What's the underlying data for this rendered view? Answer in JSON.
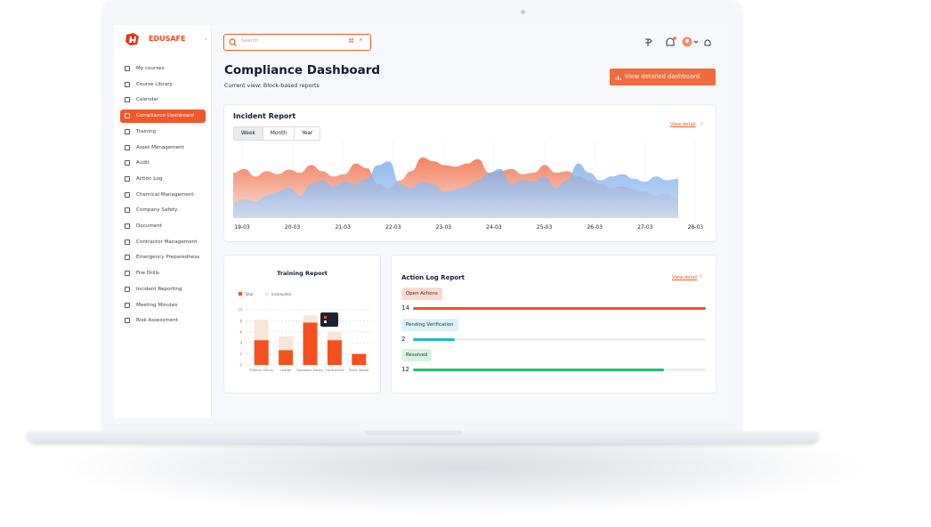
{
  "brand": "EDUSAFE",
  "sidebar": {
    "items": [
      "My courses",
      "Course Library",
      "Calendar",
      "Compliance Dashboard",
      "Training",
      "Asset Management",
      "Audit",
      "Action Log",
      "Chemical Management",
      "Company Safety",
      "Document",
      "Contractor Management",
      "Emergency Preparedness",
      "Fire Drills",
      "Incident Reporting",
      "Meeting Minutes",
      "Risk Assessment"
    ],
    "active": 3
  },
  "header": {
    "search_placeholder": "Search",
    "shortcut": "F"
  },
  "page": {
    "title": "Compliance Dashboard",
    "subtitle": "Current view: Block-based reports",
    "button": "View detailed dashboard"
  },
  "incident_report": {
    "title": "Incident Report",
    "tabs": [
      "Week",
      "Month",
      "Year"
    ],
    "active_tab": 0,
    "link": "View detail",
    "x_labels": [
      "19-03",
      "20-03",
      "21-03",
      "22-03",
      "23-03",
      "24-03",
      "25-03",
      "26-03",
      "27-03",
      "28-03"
    ],
    "ylim": [
      0,
      100
    ],
    "series": [
      {
        "color": "#f26b45",
        "values": [
          60,
          65,
          55,
          62,
          58,
          64,
          60,
          70,
          62,
          55,
          58,
          72,
          66,
          45,
          40,
          50,
          62,
          80,
          75,
          70,
          68,
          72,
          78,
          60,
          62,
          65,
          58,
          60,
          70,
          60,
          62,
          55,
          50,
          45,
          40,
          42,
          38,
          35,
          30,
          32,
          25
        ]
      },
      {
        "color": "#6fa8e8",
        "values": [
          20,
          25,
          22,
          30,
          35,
          40,
          30,
          45,
          50,
          42,
          48,
          45,
          52,
          70,
          75,
          45,
          40,
          48,
          45,
          35,
          38,
          42,
          50,
          60,
          65,
          45,
          50,
          48,
          55,
          40,
          50,
          72,
          60,
          50,
          55,
          58,
          52,
          48,
          55,
          50,
          52
        ]
      }
    ]
  },
  "training_report": {
    "title": "Training Report",
    "ylim": [
      0,
      10
    ],
    "yticks": [
      0,
      2,
      4,
      6,
      8,
      10
    ],
    "categories": [
      "Federal Minus",
      "Ladder",
      "Spreader Safety",
      "Contracted",
      "Fixed ladder"
    ],
    "series": [
      {
        "name": "Total",
        "color": "#f4511e",
        "values": [
          4.5,
          2.7,
          7.7,
          4.5,
          2
        ]
      },
      {
        "name": "Incomplete",
        "color": "#f8e6da",
        "values": [
          3.7,
          2.5,
          1.3,
          1.5,
          0
        ]
      }
    ]
  },
  "action_log": {
    "title": "Action Log Report",
    "link": "View detail",
    "items": [
      {
        "label": "Open Actions",
        "value": 14,
        "color": "#f4511e",
        "tag_bg": "#fbd9cf"
      },
      {
        "label": "Pending Verification",
        "value": 2,
        "color": "#1fb6d4",
        "tag_bg": "#d9f2f7"
      },
      {
        "label": "Resolved",
        "value": 12,
        "color": "#22c06b",
        "tag_bg": "#d6f3e2"
      }
    ]
  }
}
